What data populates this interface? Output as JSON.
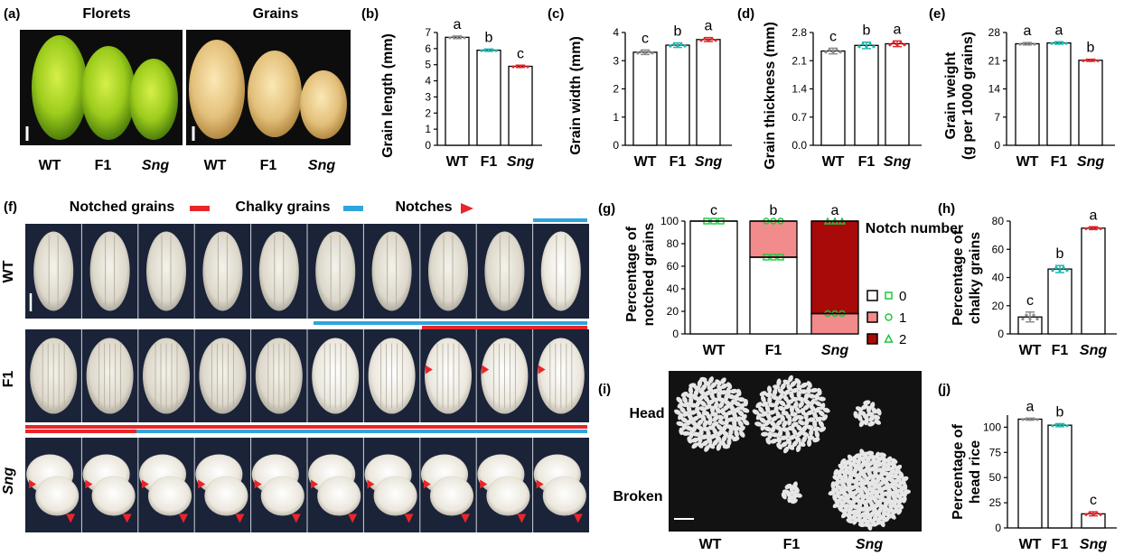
{
  "figure": {
    "panels": {
      "a": {
        "label": "(a)",
        "florets_title": "Florets",
        "grains_title": "Grains",
        "genotypes": [
          "WT",
          "F1",
          "Sng"
        ]
      },
      "b": {
        "label": "(b)"
      },
      "c": {
        "label": "(c)"
      },
      "d": {
        "label": "(d)"
      },
      "e": {
        "label": "(e)"
      },
      "f": {
        "label": "(f)",
        "legend": [
          "Notched grains",
          "Chalky grains",
          "Notches"
        ],
        "rows": [
          "WT",
          "F1",
          "Sng"
        ]
      },
      "g": {
        "label": "(g)",
        "legend_title": "Notch number",
        "legend_items": [
          "0",
          "1",
          "2"
        ]
      },
      "h": {
        "label": "(h)"
      },
      "i": {
        "label": "(i)",
        "rows": [
          "Head",
          "Broken"
        ],
        "genotypes": [
          "WT",
          "F1",
          "Sng"
        ]
      },
      "j": {
        "label": "(j)"
      }
    },
    "colors": {
      "notched": "#e8262a",
      "chalky": "#2fa5dc",
      "wt": "#8c8c8c",
      "f1": "#1fb8b0",
      "sng": "#e8262a",
      "one_notch": "#f28b8b",
      "two_notch": "#a80a0a",
      "green": "#19c83a"
    }
  },
  "chart_data": [
    {
      "id": "b",
      "type": "bar",
      "categories": [
        "WT",
        "F1",
        "Sng"
      ],
      "values": [
        6.7,
        5.9,
        4.9
      ],
      "errors": [
        0.08,
        0.07,
        0.07
      ],
      "letters": [
        "a",
        "b",
        "c"
      ],
      "ylabel": "Grain length (mm)",
      "ylim": [
        0,
        7
      ],
      "yticks": [
        "0",
        "1",
        "2",
        "3",
        "4",
        "5",
        "6",
        "7"
      ]
    },
    {
      "id": "c",
      "type": "bar",
      "categories": [
        "WT",
        "F1",
        "Sng"
      ],
      "values": [
        3.3,
        3.55,
        3.75
      ],
      "errors": [
        0.08,
        0.08,
        0.07
      ],
      "letters": [
        "c",
        "b",
        "a"
      ],
      "ylabel": "Grain width (mm)",
      "ylim": [
        0,
        4
      ],
      "yticks": [
        "0",
        "1",
        "2",
        "3",
        "4"
      ]
    },
    {
      "id": "d",
      "type": "bar",
      "categories": [
        "WT",
        "F1",
        "Sng"
      ],
      "values": [
        2.34,
        2.48,
        2.52
      ],
      "errors": [
        0.07,
        0.08,
        0.07
      ],
      "letters": [
        "c",
        "b",
        "a"
      ],
      "ylabel": "Grain thickness (mm)",
      "ylim": [
        0,
        2.8
      ],
      "yticks": [
        "0.0",
        "0.7",
        "1.4",
        "2.1",
        "2.8"
      ]
    },
    {
      "id": "e",
      "type": "bar",
      "categories": [
        "WT",
        "F1",
        "Sng"
      ],
      "values": [
        25.2,
        25.4,
        21.1
      ],
      "errors": [
        0.3,
        0.3,
        0.25
      ],
      "letters": [
        "a",
        "a",
        "b"
      ],
      "ylabel": "Grain weight",
      "ylabel2": "(g per 1000 grains)",
      "ylim": [
        0,
        28
      ],
      "yticks": [
        "0",
        "7",
        "14",
        "21",
        "28"
      ]
    },
    {
      "id": "g",
      "type": "stacked-bar",
      "categories": [
        "WT",
        "F1",
        "Sng"
      ],
      "series": [
        {
          "name": "0",
          "values": [
            100,
            68,
            0
          ]
        },
        {
          "name": "1",
          "values": [
            0,
            32,
            18
          ]
        },
        {
          "name": "2",
          "values": [
            0,
            0,
            82
          ]
        }
      ],
      "letters": [
        "c",
        "b",
        "a"
      ],
      "ylabel": "Percentage of",
      "ylabel2": "notched grains",
      "ylim": [
        0,
        100
      ],
      "yticks": [
        "0",
        "20",
        "40",
        "60",
        "80",
        "100"
      ]
    },
    {
      "id": "h",
      "type": "bar",
      "categories": [
        "WT",
        "F1",
        "Sng"
      ],
      "values": [
        12,
        46,
        75
      ],
      "errors": [
        3.5,
        2.5,
        1
      ],
      "letters": [
        "c",
        "b",
        "a"
      ],
      "ylabel": "Percentage of",
      "ylabel2": "chalky grains",
      "ylim": [
        0,
        80
      ],
      "yticks": [
        "0",
        "20",
        "40",
        "60",
        "80"
      ]
    },
    {
      "id": "j",
      "type": "bar",
      "categories": [
        "WT",
        "F1",
        "Sng"
      ],
      "values": [
        108,
        102,
        14
      ],
      "errors": [
        1,
        1.5,
        2
      ],
      "letters": [
        "a",
        "b",
        "c"
      ],
      "ylabel": "Percentage of",
      "ylabel2": "head rice",
      "ylim": [
        0,
        112
      ],
      "yticks": [
        "0",
        "25",
        "50",
        "75",
        "100"
      ]
    }
  ]
}
